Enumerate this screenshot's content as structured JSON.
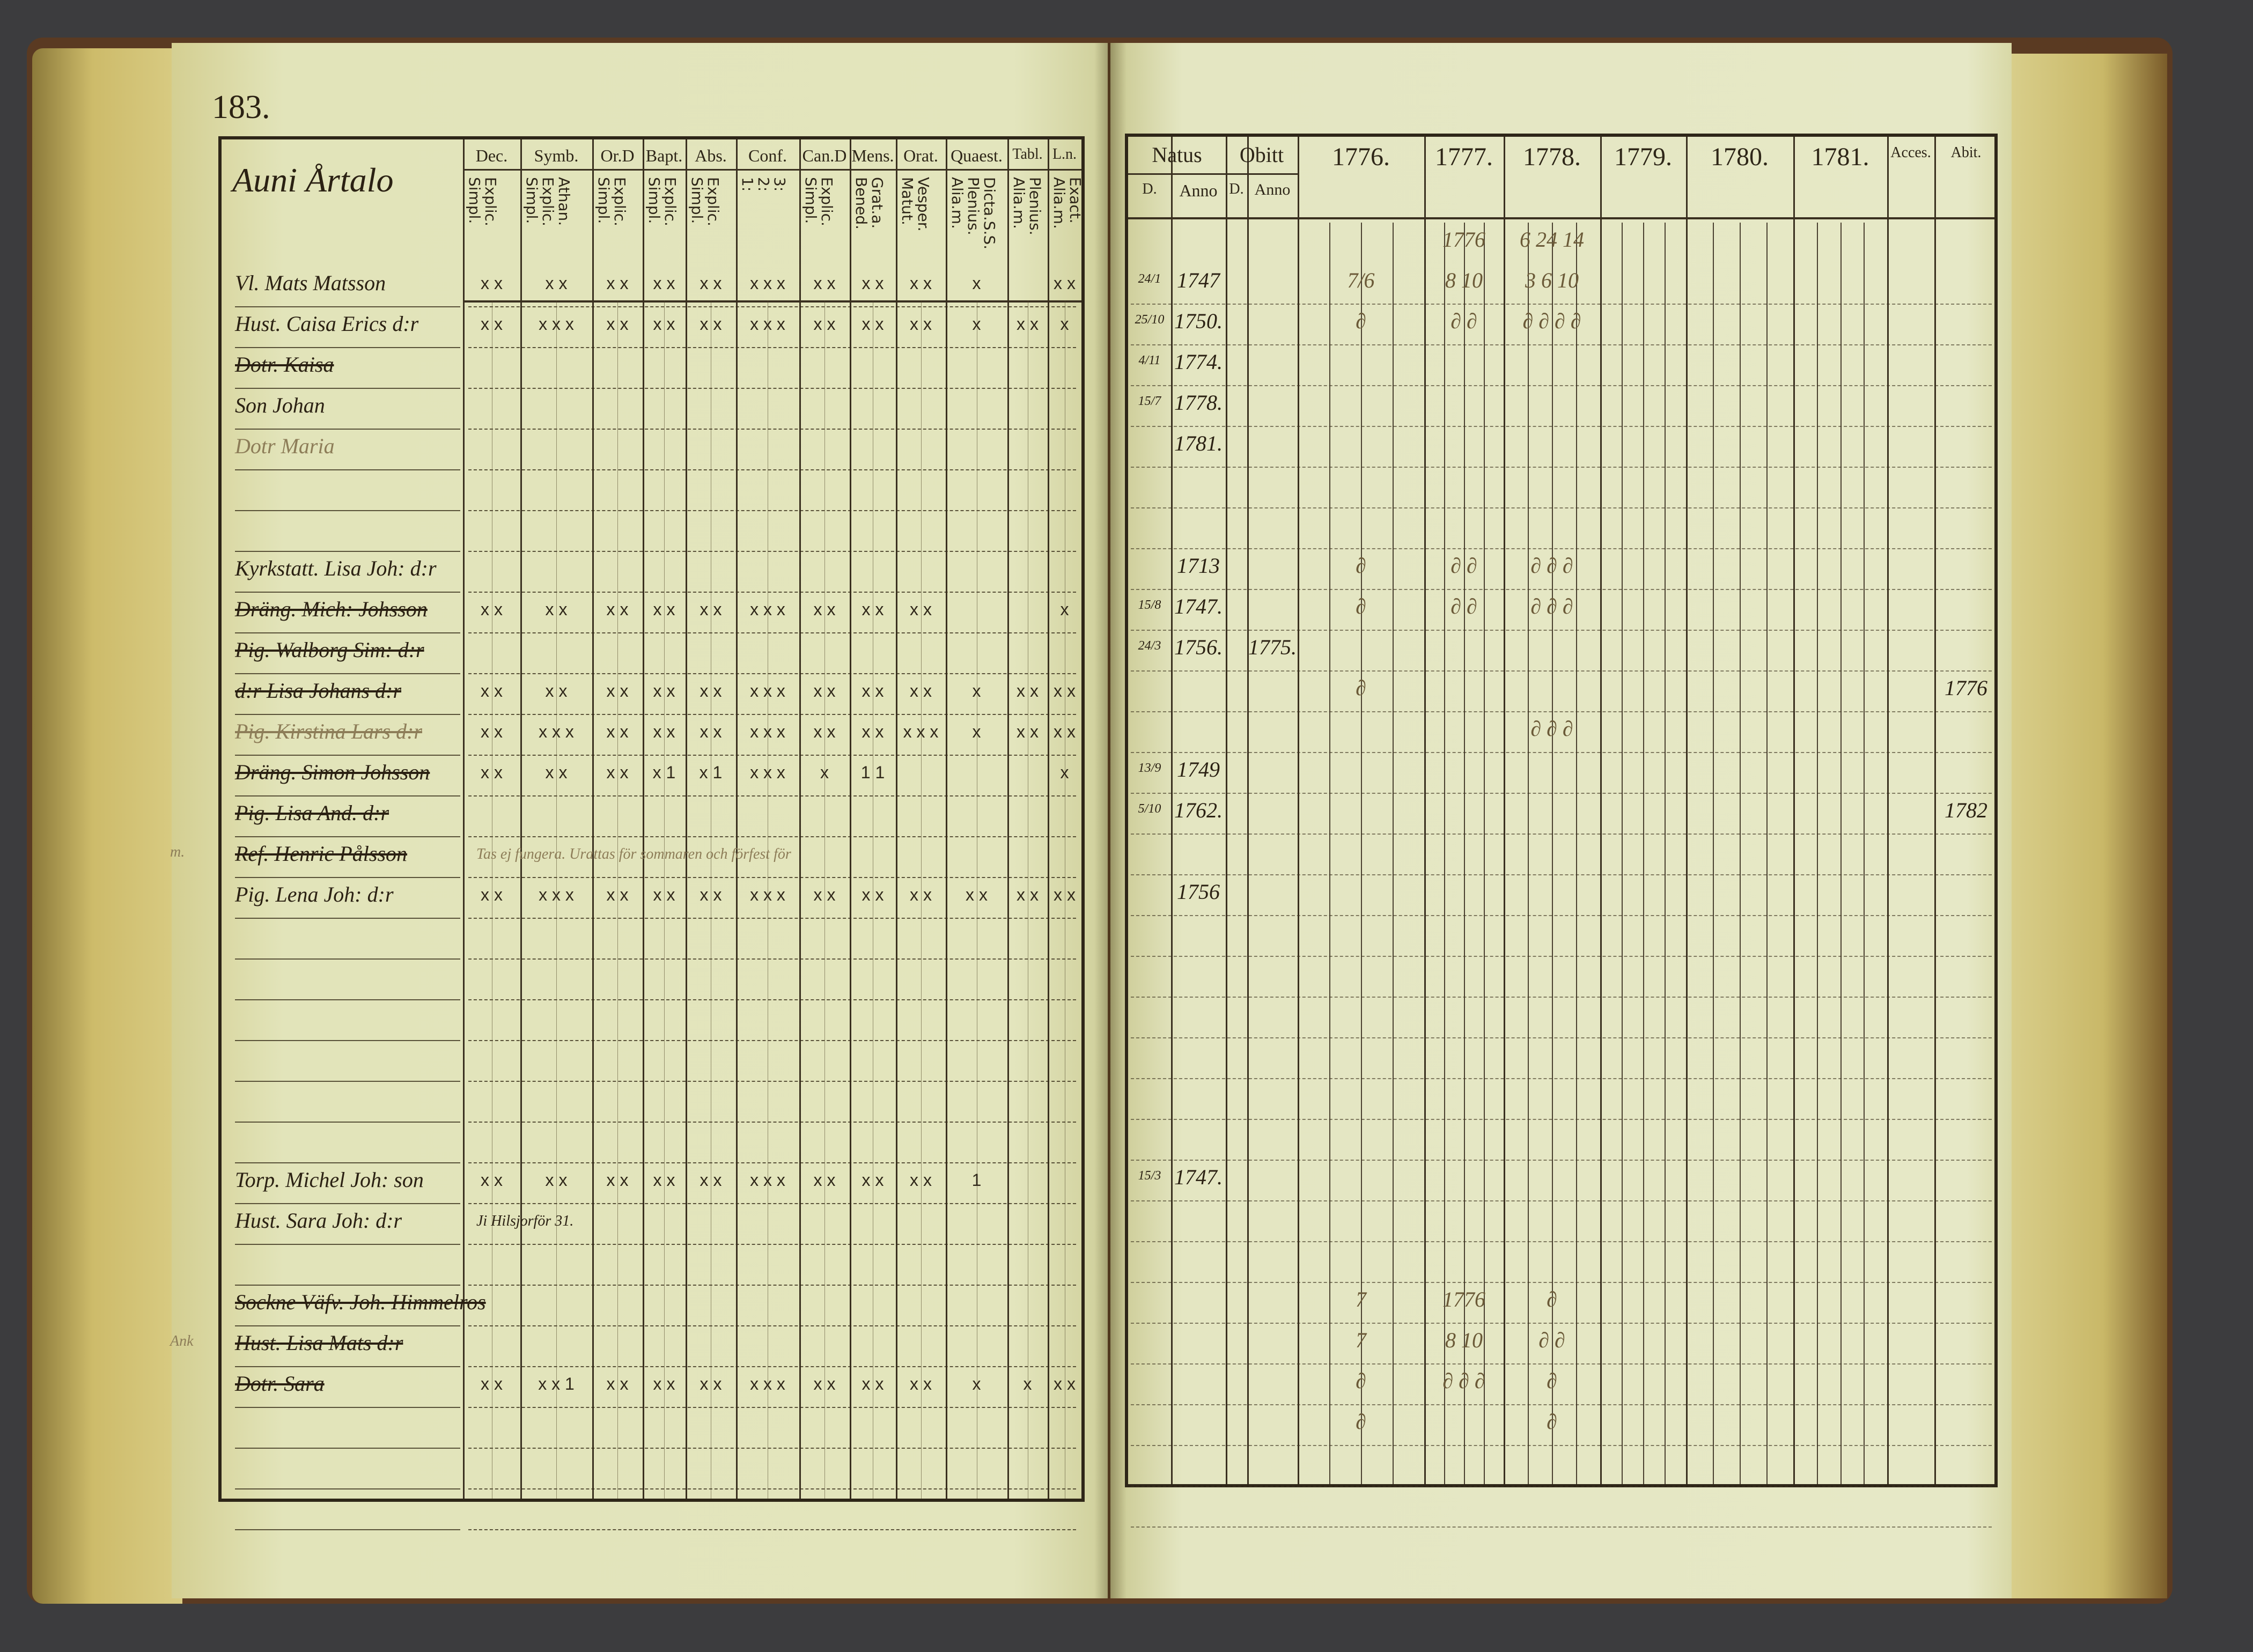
{
  "left_page": {
    "page_number": "183.",
    "name_header": "Auni Årtalo",
    "columns": [
      {
        "title": "Dec.",
        "sub": "Explic.\nSimpl."
      },
      {
        "title": "Symb.",
        "sub": "Athan.\nExplic.\nSimpl."
      },
      {
        "title": "Or.D",
        "sub": "Explic.\nSimpl."
      },
      {
        "title": "Bapt.",
        "sub": "Explic.\nSimpl."
      },
      {
        "title": "Abs.",
        "sub": "Explic.\nSimpl."
      },
      {
        "title": "Conf.",
        "sub": "3:\n2:\n1:"
      },
      {
        "title": "Can.D",
        "sub": "Explic.\nSimpl."
      },
      {
        "title": "Mens.",
        "sub": "Grat.a.\nBened."
      },
      {
        "title": "Orat.",
        "sub": "Vesper.\nMatut."
      },
      {
        "title": "Quaest.",
        "sub": "Dicta.S.S.\nPlenius.\nAlia.m."
      },
      {
        "title": "Tabl.",
        "sub": "Plenius.\nAlia.m."
      },
      {
        "title": "L.n.",
        "sub": "Exact.\nAlia.m."
      }
    ],
    "rows": [
      {
        "row": 0,
        "name": "Vl. Mats Matsson",
        "struck": false,
        "marks": [
          "x x",
          "x x",
          "x x",
          "x x",
          "x x",
          "x x x",
          "x x",
          "x x",
          "x x",
          "x",
          "",
          "x x"
        ]
      },
      {
        "row": 1,
        "name": "Hust. Caisa Erics d:r",
        "struck": false,
        "marks": [
          "x x",
          "x x x",
          "x x",
          "x x",
          "x x",
          "x x x",
          "x x",
          "x x",
          "x x",
          "x",
          "x x",
          "x"
        ]
      },
      {
        "row": 2,
        "name": "Dotr. Kaisa",
        "struck": true,
        "marks": []
      },
      {
        "row": 3,
        "name": "Son Johan",
        "struck": false,
        "marks": []
      },
      {
        "row": 4,
        "name": "Dotr Maria",
        "struck": false,
        "faint": true,
        "marks": []
      },
      {
        "row": 7,
        "name": "Kyrkstatt. Lisa Joh: d:r",
        "struck": false,
        "marks": []
      },
      {
        "row": 8,
        "name": "Dräng. Mich: Johsson",
        "struck": true,
        "marks": [
          "x x",
          "x x",
          "x x",
          "x x",
          "x x",
          "x x x",
          "x x",
          "x x",
          "x x",
          "",
          "",
          "x"
        ]
      },
      {
        "row": 9,
        "name": "Pig. Walborg Sim: d:r",
        "struck": true,
        "marks": []
      },
      {
        "row": 10,
        "name": "d:r Lisa Johans d:r",
        "struck": true,
        "marks": [
          "x x",
          "x x",
          "x x",
          "x x",
          "x x",
          "x x x",
          "x x",
          "x x",
          "x x",
          "x",
          "x x",
          "x x"
        ]
      },
      {
        "row": 11,
        "name": "Pig. Kirstina Lars d:r",
        "struck": true,
        "faint": true,
        "marks": [
          "x x",
          "x x x",
          "x x",
          "x x",
          "x x",
          "x x x",
          "x x",
          "x x",
          "x x x",
          "x",
          "x x",
          "x x"
        ]
      },
      {
        "row": 12,
        "name": "Dräng. Simon Johsson",
        "struck": true,
        "marks": [
          "x x",
          "x x",
          "x x",
          "x 1",
          "x 1",
          "x x x",
          "x",
          "1 1",
          "",
          "",
          "",
          "x"
        ]
      },
      {
        "row": 13,
        "name": "Pig. Lisa And. d:r",
        "struck": true,
        "marks": []
      },
      {
        "row": 14,
        "name": "Ref. Henric Pålsson",
        "struck": true,
        "marks": []
      },
      {
        "row": 15,
        "name": "Pig. Lena Joh: d:r",
        "struck": false,
        "marks": [
          "x x",
          "x x x",
          "x x",
          "x x",
          "x x",
          "x x x",
          "x x",
          "x x",
          "x x",
          "x x",
          "x x",
          "x x"
        ]
      },
      {
        "row": 22,
        "name": "Torp. Michel Joh: son",
        "struck": false,
        "marks": [
          "x x",
          "x x",
          "x x",
          "x x",
          "x x",
          "x x x",
          "x x",
          "x x",
          "x x",
          "1",
          "",
          ""
        ]
      },
      {
        "row": 23,
        "name": "Hust. Sara Joh: d:r",
        "struck": false,
        "marks": []
      },
      {
        "row": 25,
        "name": "Sockne Väfv. Joh. Himmelros",
        "struck": true,
        "marks": []
      },
      {
        "row": 26,
        "name": "Hust. Lisa Mats d:r",
        "struck": true,
        "marks": []
      },
      {
        "row": 27,
        "name": "Dotr. Sara",
        "struck": true,
        "marks": [
          "x x",
          "x x 1",
          "x x",
          "x x",
          "x x",
          "x x x",
          "x x",
          "x x",
          "x x",
          "x",
          "x",
          "x x"
        ]
      }
    ],
    "row_notes": [
      {
        "row": 14,
        "text": "Tas ej fungera. Urattas för sommaren och förfest för",
        "faint": true
      },
      {
        "row": 23,
        "text": "Ji Hilsjorför 31."
      }
    ],
    "margin_notes": [
      {
        "row": 14,
        "text": "m."
      },
      {
        "row": 26,
        "text": "Ank"
      }
    ]
  },
  "right_page": {
    "headers": {
      "natus": "Natus",
      "natus_d": "D.",
      "natus_anno": "Anno",
      "obit": "Obitt",
      "obit_d": "D.",
      "obit_anno": "Anno",
      "years": [
        "1776.",
        "1777.",
        "1778.",
        "1779.",
        "1780.",
        "1781."
      ],
      "acces": "Acces.",
      "abit": "Abit."
    },
    "rows": [
      {
        "row": -1,
        "y1777": "1776",
        "y1778": "6 24 14"
      },
      {
        "row": 0,
        "natus_d": "24/1",
        "natus_anno": "1747",
        "y1776": "7/6",
        "y1777": "8 10",
        "y1778": "3 6 10"
      },
      {
        "row": 1,
        "natus_d": "25/10",
        "natus_anno": "1750.",
        "y1776": "∂",
        "y1777": "∂ ∂",
        "y1778": "∂ ∂ ∂  ∂"
      },
      {
        "row": 2,
        "natus_d": "4/11",
        "natus_anno": "1774."
      },
      {
        "row": 3,
        "natus_d": "15/7",
        "natus_anno": "1778."
      },
      {
        "row": 4,
        "natus_anno": "1781."
      },
      {
        "row": 7,
        "natus_anno": "1713",
        "y1776": "∂",
        "y1777": "∂ ∂",
        "y1778": "∂ ∂ ∂"
      },
      {
        "row": 8,
        "natus_d": "15/8",
        "natus_anno": "1747.",
        "y1776": "∂",
        "y1777": "∂ ∂",
        "y1778": "∂ ∂ ∂"
      },
      {
        "row": 9,
        "natus_d": "24/3",
        "natus_anno": "1756.",
        "obit_anno": "1775."
      },
      {
        "row": 10,
        "y1776": "∂",
        "abit": "1776"
      },
      {
        "row": 11,
        "y1778": "∂ ∂ ∂"
      },
      {
        "row": 12,
        "natus_d": "13/9",
        "natus_anno": "1749"
      },
      {
        "row": 13,
        "natus_d": "5/10",
        "natus_anno": "1762.",
        "abit": "1782"
      },
      {
        "row": 15,
        "natus_anno": "1756"
      },
      {
        "row": 22,
        "natus_d": "15/3",
        "natus_anno": "1747."
      },
      {
        "row": 25,
        "y1776": "7",
        "y1777": "1776",
        "y1778": "∂"
      },
      {
        "row": 26,
        "y1776": "7",
        "y1777": "8 10",
        "y1778": "∂ ∂"
      },
      {
        "row": 27,
        "y1776": "∂",
        "y1777": "∂ ∂ ∂",
        "y1778": "∂"
      },
      {
        "row": 28,
        "y1776": "∂",
        "y1778": "∂"
      }
    ]
  },
  "colors": {
    "background": "#3c3c3e",
    "paper": "#e2e4ba",
    "ink": "#2e2618",
    "page_edges": "#cdbb6a"
  }
}
